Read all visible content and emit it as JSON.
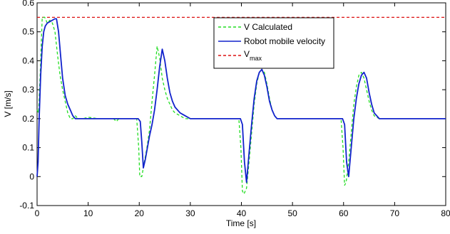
{
  "chart_data": {
    "type": "line",
    "title": "",
    "xlabel": "Time [s]",
    "ylabel": "V [m/s]",
    "xlim": [
      0,
      80
    ],
    "ylim": [
      -0.1,
      0.6
    ],
    "xticks": [
      "0",
      "10",
      "20",
      "30",
      "40",
      "50",
      "60",
      "70",
      "80"
    ],
    "yticks": [
      "-0.1",
      "0",
      "0.1",
      "0.2",
      "0.3",
      "0.4",
      "0.5",
      "0.6"
    ],
    "grid": false,
    "legend_position": "top-right",
    "legend": {
      "entries": [
        {
          "label": "V Calculated"
        },
        {
          "label": "Robot mobile velocity"
        },
        {
          "label_main": "V",
          "label_sub": "max"
        }
      ]
    },
    "series": [
      {
        "name": "V Calculated",
        "style": "dashed",
        "color": "#22dd22",
        "x": [
          0,
          0.3,
          0.6,
          1.0,
          1.5,
          2.0,
          2.5,
          3.0,
          3.5,
          4.0,
          4.5,
          5.0,
          5.5,
          6.0,
          6.5,
          7.0,
          7.5,
          8.0,
          9,
          10,
          12,
          15,
          15.5,
          16,
          18,
          19.5,
          19.9,
          20.1,
          20.5,
          21,
          21.5,
          22,
          22.5,
          23,
          23.5,
          24,
          24.5,
          25,
          25.5,
          26,
          26.5,
          27,
          28,
          29,
          30,
          32,
          35,
          38,
          39.5,
          39.9,
          40.2,
          40.5,
          41,
          41.5,
          42,
          42.5,
          43,
          43.5,
          44,
          44.5,
          45,
          45.5,
          46,
          46.5,
          47,
          48,
          50,
          52,
          55,
          58,
          59.5,
          59.9,
          60.2,
          60.5,
          61,
          61.5,
          62,
          62.5,
          63,
          63.5,
          64,
          64.5,
          65,
          65.5,
          66,
          67,
          68,
          70,
          72,
          75,
          78,
          80
        ],
        "y": [
          0.23,
          0.22,
          0.35,
          0.55,
          0.55,
          0.53,
          0.54,
          0.53,
          0.5,
          0.42,
          0.35,
          0.3,
          0.26,
          0.22,
          0.2,
          0.2,
          0.21,
          0.2,
          0.2,
          0.205,
          0.2,
          0.2,
          0.19,
          0.2,
          0.2,
          0.2,
          0.1,
          0.0,
          0.0,
          0.05,
          0.1,
          0.16,
          0.26,
          0.35,
          0.45,
          0.41,
          0.34,
          0.3,
          0.27,
          0.25,
          0.23,
          0.22,
          0.21,
          0.2,
          0.2,
          0.2,
          0.2,
          0.2,
          0.2,
          0.1,
          -0.05,
          -0.06,
          -0.04,
          0.05,
          0.15,
          0.25,
          0.32,
          0.36,
          0.37,
          0.36,
          0.32,
          0.27,
          0.23,
          0.21,
          0.2,
          0.2,
          0.2,
          0.2,
          0.2,
          0.2,
          0.2,
          0.1,
          -0.03,
          -0.02,
          0.05,
          0.15,
          0.25,
          0.31,
          0.35,
          0.36,
          0.34,
          0.3,
          0.26,
          0.23,
          0.21,
          0.2,
          0.2,
          0.2,
          0.2,
          0.2,
          0.2,
          0.2
        ]
      },
      {
        "name": "Robot mobile velocity",
        "style": "solid",
        "color": "#1122cc",
        "x": [
          0,
          0.2,
          0.4,
          0.7,
          1.0,
          1.3,
          1.6,
          2.0,
          2.5,
          3.0,
          3.5,
          3.8,
          4.2,
          4.6,
          5.0,
          5.5,
          6.0,
          6.5,
          7.0,
          7.5,
          8.0,
          9,
          10,
          12,
          15,
          16,
          18,
          19.8,
          20.2,
          20.5,
          20.8,
          21.2,
          21.6,
          22,
          22.5,
          23,
          23.5,
          24,
          24.5,
          25,
          25.5,
          26,
          26.5,
          27,
          28,
          29,
          30,
          32,
          35,
          38,
          39.8,
          40.2,
          40.6,
          41,
          41.5,
          42,
          42.5,
          43,
          43.5,
          44,
          44.5,
          45,
          45.5,
          46,
          46.5,
          47,
          48,
          50,
          52,
          55,
          58,
          59.8,
          60.2,
          60.6,
          61,
          61.5,
          62,
          62.5,
          63,
          63.5,
          64,
          64.5,
          65,
          65.5,
          66,
          67,
          68,
          70,
          72,
          75,
          78,
          80
        ],
        "y": [
          0.0,
          0.05,
          0.2,
          0.35,
          0.45,
          0.5,
          0.52,
          0.53,
          0.535,
          0.54,
          0.545,
          0.545,
          0.5,
          0.42,
          0.34,
          0.28,
          0.25,
          0.23,
          0.21,
          0.2,
          0.2,
          0.2,
          0.2,
          0.2,
          0.2,
          0.2,
          0.2,
          0.2,
          0.19,
          0.12,
          0.03,
          0.06,
          0.1,
          0.14,
          0.18,
          0.23,
          0.3,
          0.38,
          0.44,
          0.4,
          0.34,
          0.29,
          0.26,
          0.24,
          0.22,
          0.21,
          0.2,
          0.2,
          0.2,
          0.2,
          0.2,
          0.18,
          0.05,
          -0.02,
          0.08,
          0.18,
          0.27,
          0.33,
          0.36,
          0.37,
          0.35,
          0.31,
          0.26,
          0.23,
          0.21,
          0.2,
          0.2,
          0.2,
          0.2,
          0.2,
          0.2,
          0.2,
          0.18,
          0.05,
          0.0,
          0.1,
          0.2,
          0.27,
          0.32,
          0.35,
          0.36,
          0.34,
          0.29,
          0.25,
          0.22,
          0.2,
          0.2,
          0.2,
          0.2,
          0.2,
          0.2,
          0.2
        ]
      },
      {
        "name": "Vmax",
        "style": "dashed",
        "color": "#dd1111",
        "x": [
          0,
          80
        ],
        "y": [
          0.55,
          0.55
        ]
      }
    ]
  }
}
